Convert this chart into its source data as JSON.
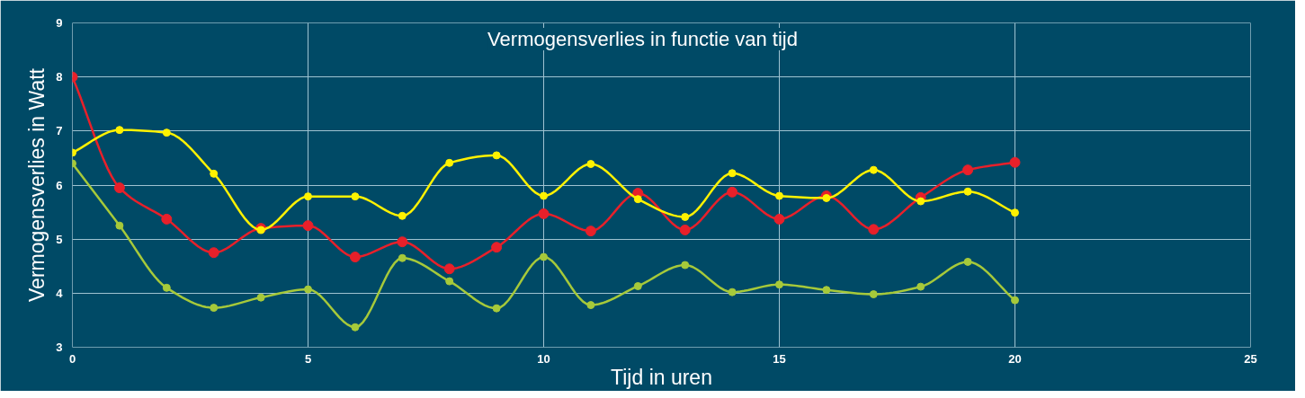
{
  "chart_data": {
    "type": "line",
    "title": "Vermogensverlies in functie van tijd",
    "xlabel": "Tijd in uren",
    "ylabel": "Vermogensverlies in Watt",
    "x": [
      0,
      1,
      2,
      3,
      4,
      5,
      6,
      7,
      8,
      9,
      10,
      11,
      12,
      13,
      14,
      15,
      16,
      17,
      18,
      19,
      20
    ],
    "series": [
      {
        "color": "#e8202a",
        "values": [
          8.0,
          5.95,
          5.37,
          4.75,
          5.2,
          5.25,
          4.67,
          4.95,
          4.45,
          4.85,
          5.47,
          5.15,
          5.85,
          5.17,
          5.87,
          5.37,
          5.8,
          5.18,
          5.77,
          6.28,
          6.42
        ]
      },
      {
        "color": "#fff200",
        "values": [
          6.6,
          7.02,
          6.97,
          6.21,
          5.17,
          5.79,
          5.79,
          5.43,
          6.41,
          6.55,
          5.8,
          6.39,
          5.74,
          5.41,
          6.22,
          5.8,
          5.76,
          6.28,
          5.7,
          5.88,
          5.49
        ]
      },
      {
        "color": "#a6c93a",
        "values": [
          6.4,
          5.25,
          4.1,
          3.73,
          3.92,
          4.07,
          3.37,
          4.65,
          4.22,
          3.72,
          4.67,
          3.78,
          4.13,
          4.52,
          4.02,
          4.16,
          4.06,
          3.98,
          4.12,
          4.58,
          3.87
        ]
      }
    ],
    "xlim": [
      0,
      25
    ],
    "xticks": [
      0,
      5,
      10,
      15,
      20,
      25
    ],
    "ylim": [
      3,
      9
    ],
    "yticks": [
      3,
      4,
      5,
      6,
      7,
      8,
      9
    ],
    "grid": true,
    "marker": "circle",
    "line_style": "solid"
  }
}
